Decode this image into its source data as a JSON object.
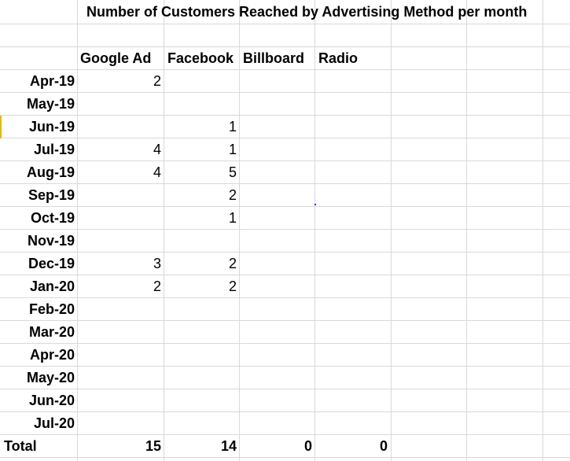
{
  "sheet": {
    "title": "Number of Customers Reached by Advertising Method per month",
    "headers": [
      "Google Ad",
      "Facebook",
      "Billboard",
      "Radio"
    ],
    "rows": [
      {
        "month": "Apr-19",
        "google": "2",
        "facebook": "",
        "billboard": "",
        "radio": ""
      },
      {
        "month": "May-19",
        "google": "",
        "facebook": "",
        "billboard": "",
        "radio": ""
      },
      {
        "month": "Jun-19",
        "google": "",
        "facebook": "1",
        "billboard": "",
        "radio": ""
      },
      {
        "month": "Jul-19",
        "google": "4",
        "facebook": "1",
        "billboard": "",
        "radio": ""
      },
      {
        "month": "Aug-19",
        "google": "4",
        "facebook": "5",
        "billboard": "",
        "radio": ""
      },
      {
        "month": "Sep-19",
        "google": "",
        "facebook": "2",
        "billboard": "",
        "radio": ""
      },
      {
        "month": "Oct-19",
        "google": "",
        "facebook": "1",
        "billboard": "",
        "radio": ""
      },
      {
        "month": "Nov-19",
        "google": "",
        "facebook": "",
        "billboard": "",
        "radio": ""
      },
      {
        "month": "Dec-19",
        "google": "3",
        "facebook": "2",
        "billboard": "",
        "radio": ""
      },
      {
        "month": "Jan-20",
        "google": "2",
        "facebook": "2",
        "billboard": "",
        "radio": ""
      },
      {
        "month": "Feb-20",
        "google": "",
        "facebook": "",
        "billboard": "",
        "radio": ""
      },
      {
        "month": "Mar-20",
        "google": "",
        "facebook": "",
        "billboard": "",
        "radio": ""
      },
      {
        "month": "Apr-20",
        "google": "",
        "facebook": "",
        "billboard": "",
        "radio": ""
      },
      {
        "month": "May-20",
        "google": "",
        "facebook": "",
        "billboard": "",
        "radio": ""
      },
      {
        "month": "Jun-20",
        "google": "",
        "facebook": "",
        "billboard": "",
        "radio": ""
      },
      {
        "month": "Jul-20",
        "google": "",
        "facebook": "",
        "billboard": "",
        "radio": ""
      }
    ],
    "total": {
      "label": "Total",
      "google": "15",
      "facebook": "14",
      "billboard": "0",
      "radio": "0"
    }
  }
}
